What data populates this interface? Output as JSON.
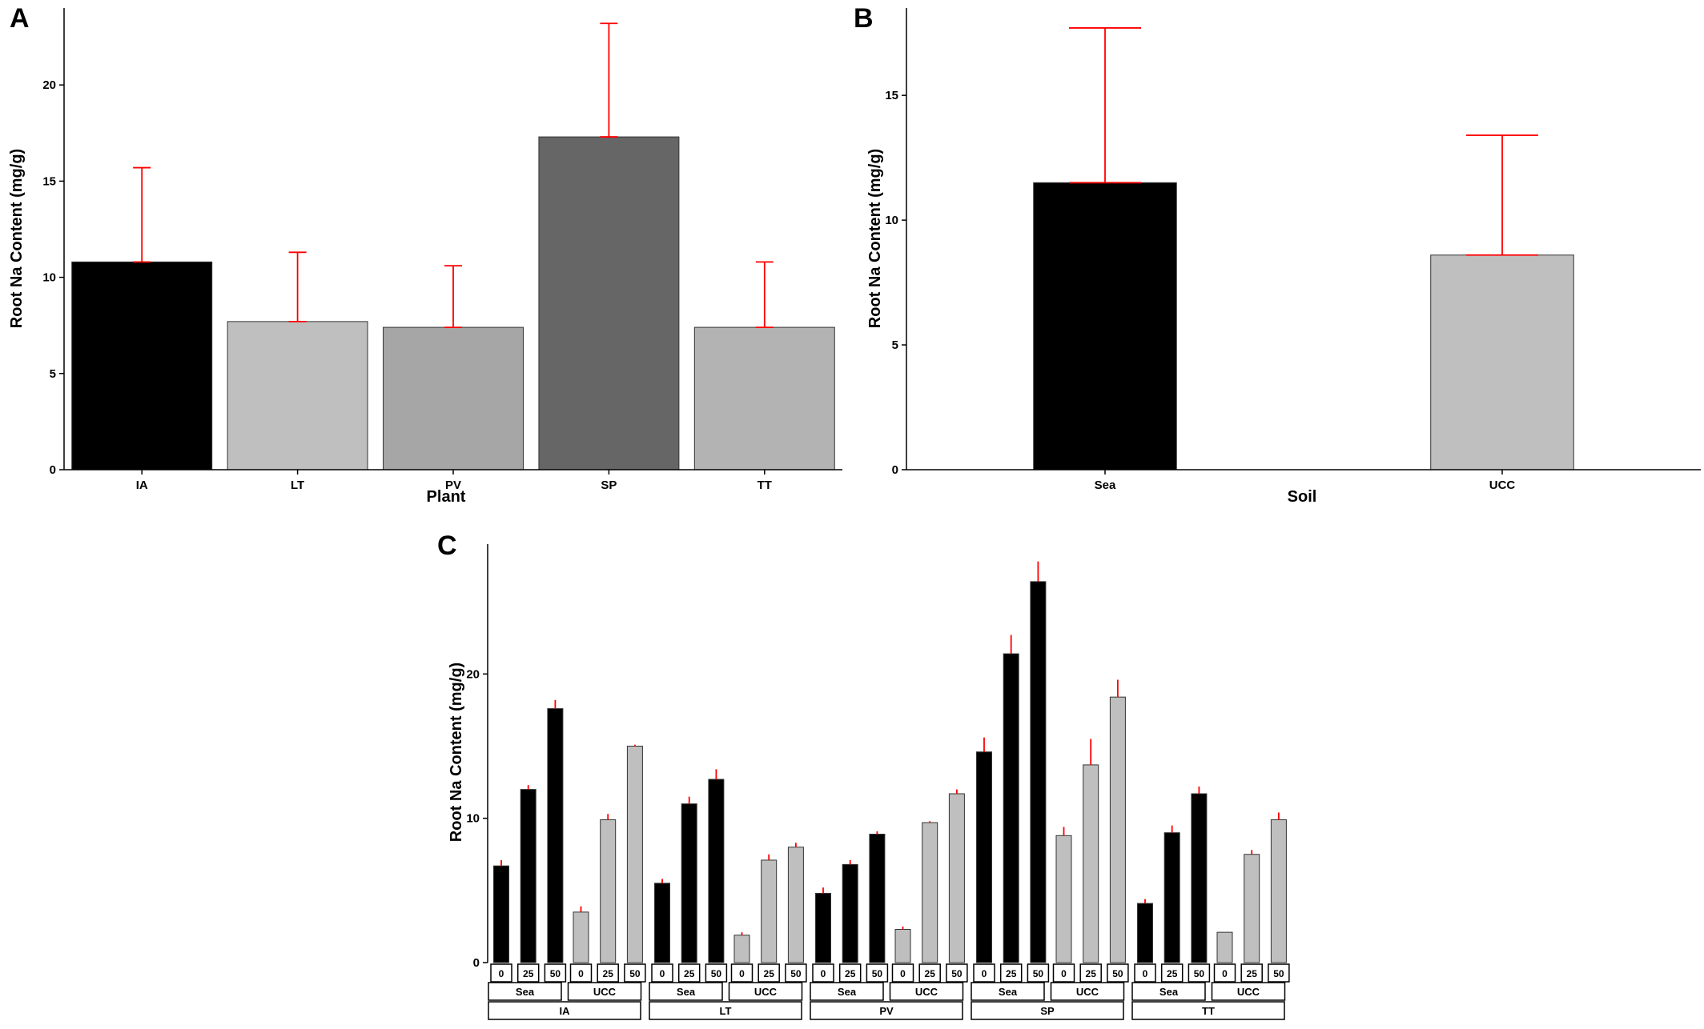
{
  "chart_data": [
    {
      "panel": "A",
      "type": "bar",
      "xlabel": "Plant",
      "ylabel": "Root Na Content (mg/g)",
      "ylim": [
        0,
        24
      ],
      "yticks": [
        0,
        5,
        10,
        15,
        20
      ],
      "grid": false,
      "categories": [
        "IA",
        "LT",
        "PV",
        "SP",
        "TT"
      ],
      "values": [
        10.8,
        7.7,
        7.4,
        17.3,
        7.4
      ],
      "errors": [
        4.9,
        3.6,
        3.2,
        5.9,
        3.4
      ],
      "colors": [
        "#000000",
        "#bfbfbf",
        "#a6a6a6",
        "#666666",
        "#b3b3b3"
      ],
      "error_color": "#ff0000"
    },
    {
      "panel": "B",
      "type": "bar",
      "xlabel": "Soil",
      "ylabel": "Root Na Content (mg/g)",
      "ylim": [
        0,
        18.5
      ],
      "yticks": [
        0,
        5,
        10,
        15
      ],
      "grid": false,
      "categories": [
        "Sea",
        "UCC"
      ],
      "values": [
        11.5,
        8.6
      ],
      "errors": [
        6.2,
        4.8
      ],
      "colors": [
        "#000000",
        "#bfbfbf"
      ],
      "error_color": "#ff0000"
    },
    {
      "panel": "C",
      "type": "bar",
      "ylabel": "Root Na Content (mg/g)",
      "ylim": [
        0,
        29
      ],
      "yticks": [
        0,
        10,
        20
      ],
      "grid": false,
      "facets": [
        "IA",
        "LT",
        "PV",
        "SP",
        "TT"
      ],
      "soils": [
        "Sea",
        "UCC"
      ],
      "doses": [
        "0",
        "25",
        "50"
      ],
      "soil_colors": {
        "Sea": "#000000",
        "UCC": "#bfbfbf"
      },
      "error_color": "#ff0000",
      "groups": [
        {
          "plant": "IA",
          "soil": "Sea",
          "values": [
            6.7,
            12.0,
            17.6
          ],
          "errors": [
            0.4,
            0.3,
            0.6
          ]
        },
        {
          "plant": "IA",
          "soil": "UCC",
          "values": [
            3.5,
            9.9,
            15.0
          ],
          "errors": [
            0.4,
            0.4,
            0.1
          ]
        },
        {
          "plant": "LT",
          "soil": "Sea",
          "values": [
            5.5,
            11.0,
            12.7
          ],
          "errors": [
            0.3,
            0.5,
            0.7
          ]
        },
        {
          "plant": "LT",
          "soil": "UCC",
          "values": [
            1.9,
            7.1,
            8.0
          ],
          "errors": [
            0.2,
            0.4,
            0.3
          ]
        },
        {
          "plant": "PV",
          "soil": "Sea",
          "values": [
            4.8,
            6.8,
            8.9
          ],
          "errors": [
            0.4,
            0.3,
            0.2
          ]
        },
        {
          "plant": "PV",
          "soil": "UCC",
          "values": [
            2.3,
            9.7,
            11.7
          ],
          "errors": [
            0.2,
            0.1,
            0.3
          ]
        },
        {
          "plant": "SP",
          "soil": "Sea",
          "values": [
            14.6,
            21.4,
            26.4
          ],
          "errors": [
            1.0,
            1.3,
            1.4
          ]
        },
        {
          "plant": "SP",
          "soil": "UCC",
          "values": [
            8.8,
            13.7,
            18.4
          ],
          "errors": [
            0.6,
            1.8,
            1.2
          ]
        },
        {
          "plant": "TT",
          "soil": "Sea",
          "values": [
            4.1,
            9.0,
            11.7
          ],
          "errors": [
            0.3,
            0.5,
            0.5
          ]
        },
        {
          "plant": "TT",
          "soil": "UCC",
          "values": [
            2.1,
            7.5,
            9.9
          ],
          "errors": [
            0.0,
            0.3,
            0.5
          ]
        }
      ]
    }
  ]
}
